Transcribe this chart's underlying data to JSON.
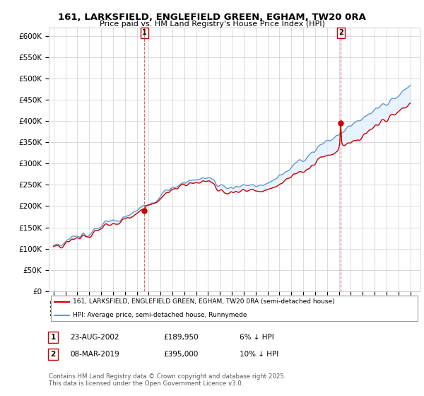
{
  "title": "161, LARKSFIELD, ENGLEFIELD GREEN, EGHAM, TW20 0RA",
  "subtitle": "Price paid vs. HM Land Registry's House Price Index (HPI)",
  "ylabel_values": [
    "£0",
    "£50K",
    "£100K",
    "£150K",
    "£200K",
    "£250K",
    "£300K",
    "£350K",
    "£400K",
    "£450K",
    "£500K",
    "£550K",
    "£600K"
  ],
  "ylim": [
    0,
    620000
  ],
  "yticks": [
    0,
    50000,
    100000,
    150000,
    200000,
    250000,
    300000,
    350000,
    400000,
    450000,
    500000,
    550000,
    600000
  ],
  "legend_line1": "161, LARKSFIELD, ENGLEFIELD GREEN, EGHAM, TW20 0RA (semi-detached house)",
  "legend_line2": "HPI: Average price, semi-detached house, Runnymede",
  "annotation1_label": "1",
  "annotation1_date": "23-AUG-2002",
  "annotation1_price": "£189,950",
  "annotation1_note": "6% ↓ HPI",
  "annotation2_label": "2",
  "annotation2_date": "08-MAR-2019",
  "annotation2_price": "£395,000",
  "annotation2_note": "10% ↓ HPI",
  "footer": "Contains HM Land Registry data © Crown copyright and database right 2025.\nThis data is licensed under the Open Government Licence v3.0.",
  "line_color_sold": "#cc0000",
  "line_color_hpi": "#6699cc",
  "fill_color_hpi": "#ddeeff",
  "background_color": "#ffffff",
  "grid_color": "#cccccc",
  "sale1_x": 2002.65,
  "sale2_x": 2019.17,
  "sale1_y": 189950,
  "sale2_y": 395000,
  "xlim_left": 1994.6,
  "xlim_right": 2025.8
}
